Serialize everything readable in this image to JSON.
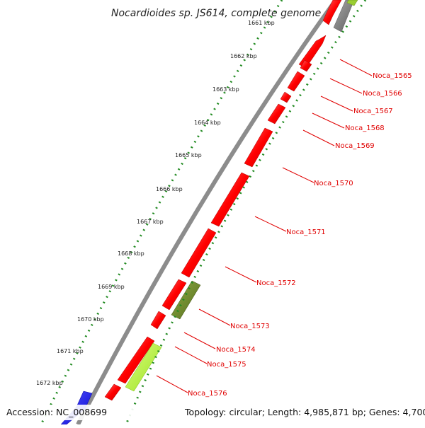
{
  "header": {
    "title": "Nocardioides sp. JS614, complete genome"
  },
  "footer": {
    "accession": "Accession: NC_008699",
    "topology": "Topology: circular; Length: 4,985,871 bp; Genes: 4,700"
  },
  "scale": {
    "kbp_ticks": [
      "1661 kbp",
      "1662 kbp",
      "1663 kbp",
      "1664 kbp",
      "1665 kbp",
      "1666 kbp",
      "1667 kbp",
      "1668 kbp",
      "1669 kbp",
      "1670 kbp",
      "1671 kbp",
      "1672 kbp"
    ]
  },
  "genes": [
    {
      "label": "Noca_1565",
      "color": "#ff0000"
    },
    {
      "label": "Noca_1566",
      "color": "#ff0000"
    },
    {
      "label": "Noca_1567",
      "color": "#ff0000"
    },
    {
      "label": "Noca_1568",
      "color": "#ff0000"
    },
    {
      "label": "Noca_1569",
      "color": "#ff0000"
    },
    {
      "label": "Noca_1570",
      "color": "#ff0000"
    },
    {
      "label": "Noca_1571",
      "color": "#ff0000"
    },
    {
      "label": "Noca_1572",
      "color": "#ff0000"
    },
    {
      "label": "Noca_1573",
      "color": "#ff0000"
    },
    {
      "label": "Noca_1574",
      "color": "#ff0000"
    },
    {
      "label": "Noca_1575",
      "color": "#ff0000"
    },
    {
      "label": "Noca_1576",
      "color": "#ff0000"
    }
  ],
  "colors": {
    "gene_red": "#ff0000",
    "gene_olive": "#6b8e23",
    "gene_lime": "#adff2f",
    "gene_gray": "#808080",
    "gene_blue": "#0000ff",
    "backbone": "#8c8c8c",
    "dotted_track": "#228b22",
    "label_red": "#e00000"
  }
}
